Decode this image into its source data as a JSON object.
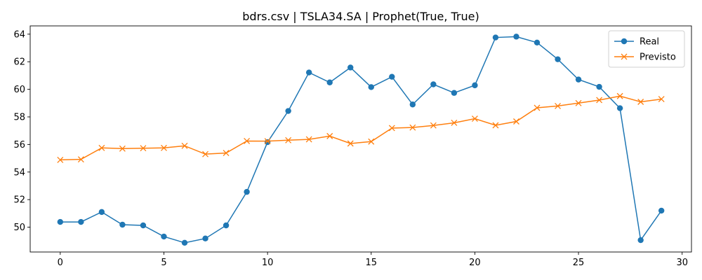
{
  "chart_data": {
    "type": "line",
    "title": "bdrs.csv | TSLA34.SA | Prophet(True, True)",
    "xlabel": "",
    "ylabel": "",
    "xlim": [
      -1.45,
      30.45
    ],
    "ylim": [
      48.2,
      64.6
    ],
    "x_ticks": [
      0,
      5,
      10,
      15,
      20,
      25,
      30
    ],
    "y_ticks": [
      50,
      52,
      54,
      56,
      58,
      60,
      62,
      64
    ],
    "grid": false,
    "legend_position": "top-right",
    "x": [
      0,
      1,
      2,
      3,
      4,
      5,
      6,
      7,
      8,
      9,
      10,
      11,
      12,
      13,
      14,
      15,
      16,
      17,
      18,
      19,
      20,
      21,
      22,
      23,
      24,
      25,
      26,
      27,
      28,
      29
    ],
    "series": [
      {
        "name": "Real",
        "color": "#1f77b4",
        "marker": "circle",
        "values": [
          50.38,
          50.38,
          51.1,
          50.18,
          50.13,
          49.32,
          48.87,
          49.18,
          50.13,
          52.56,
          56.17,
          58.43,
          61.22,
          60.5,
          61.58,
          60.16,
          60.91,
          58.9,
          60.36,
          59.74,
          60.29,
          63.76,
          63.82,
          63.39,
          62.18,
          60.71,
          60.18,
          58.63,
          49.06,
          51.2
        ]
      },
      {
        "name": "Previsto",
        "color": "#ff7f0e",
        "marker": "x",
        "values": [
          54.88,
          54.92,
          55.75,
          55.7,
          55.73,
          55.75,
          55.9,
          55.3,
          55.38,
          56.25,
          56.24,
          56.31,
          56.37,
          56.61,
          56.07,
          56.21,
          57.19,
          57.23,
          57.38,
          57.57,
          57.87,
          57.39,
          57.67,
          58.66,
          58.79,
          59.0,
          59.22,
          59.51,
          59.09,
          59.29
        ]
      }
    ]
  }
}
